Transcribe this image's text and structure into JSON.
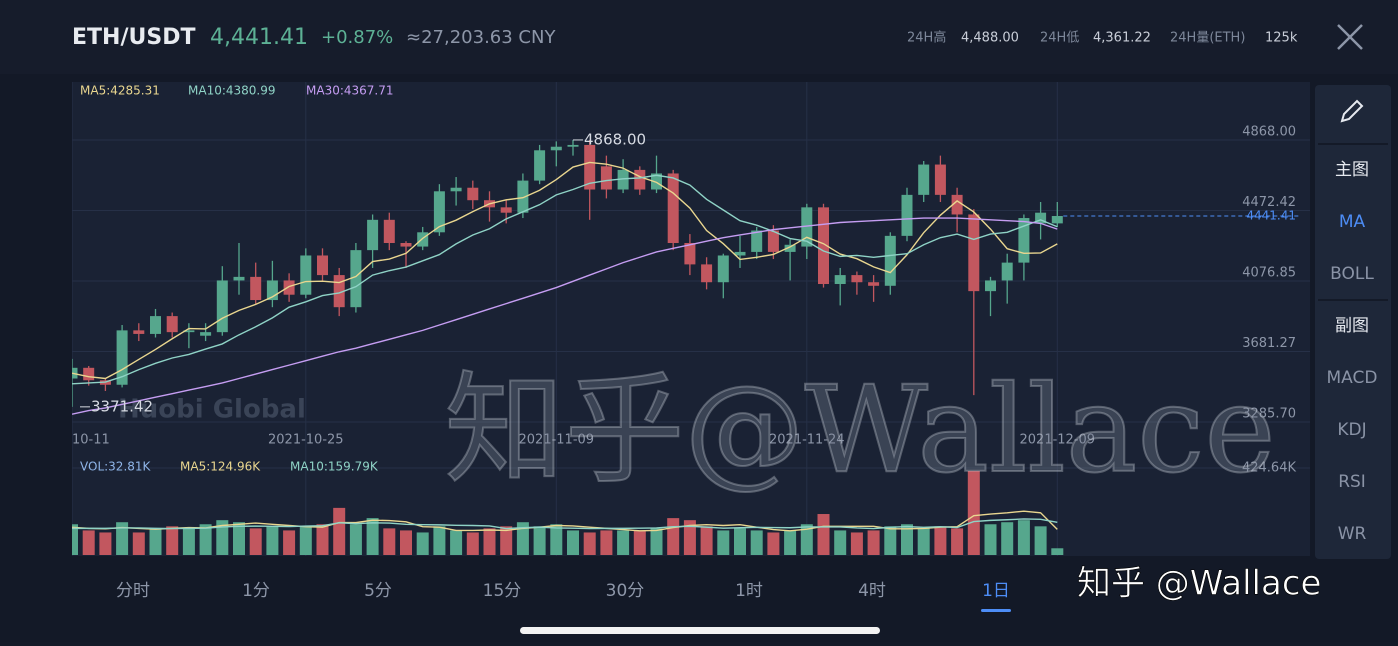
{
  "header": {
    "pair": "ETH/USDT",
    "price": "4,441.41",
    "change": "+0.87%",
    "cny": "≈27,203.63 CNY",
    "stats": [
      {
        "label": "24H高",
        "value": "4,488.00"
      },
      {
        "label": "24H低",
        "value": "4,361.22"
      },
      {
        "label": "24H量(ETH)",
        "value": "125k"
      }
    ]
  },
  "chart_data": [
    {
      "type": "candlestick",
      "up_color": "#56a78d",
      "down_color": "#c2575f",
      "categories": [
        "10-11",
        null,
        null,
        null,
        null,
        null,
        null,
        null,
        null,
        null,
        null,
        null,
        null,
        null,
        "2021-10-25",
        null,
        null,
        null,
        null,
        null,
        null,
        null,
        null,
        null,
        null,
        null,
        null,
        null,
        null,
        "2021-11-09",
        null,
        null,
        null,
        null,
        null,
        null,
        null,
        null,
        null,
        null,
        null,
        null,
        null,
        null,
        "2021-11-24",
        null,
        null,
        null,
        null,
        null,
        null,
        null,
        null,
        null,
        null,
        null,
        null,
        null,
        null,
        "2021-12-09"
      ],
      "open": [
        3530,
        3590,
        3520,
        3495,
        3800,
        3780,
        3880,
        3790,
        3770,
        3790,
        4080,
        4100,
        3970,
        4080,
        4000,
        4220,
        4110,
        3930,
        4250,
        4420,
        4290,
        4270,
        4350,
        4580,
        4600,
        4530,
        4490,
        4460,
        4640,
        4810,
        4830,
        4840,
        4720,
        4590,
        4700,
        4590,
        4680,
        4290,
        4170,
        4070,
        4220,
        4240,
        4360,
        4240,
        4270,
        4490,
        4060,
        4110,
        4070,
        4050,
        4330,
        4560,
        4730,
        4560,
        4450,
        4020,
        4080,
        4180,
        4400,
        4400
      ],
      "high": [
        3640,
        3600,
        3530,
        3830,
        3840,
        3920,
        3900,
        3840,
        3840,
        4160,
        4290,
        4180,
        4190,
        4120,
        4260,
        4260,
        4150,
        4290,
        4450,
        4460,
        4300,
        4380,
        4620,
        4660,
        4640,
        4580,
        4530,
        4680,
        4840,
        4860,
        4868,
        4868,
        4780,
        4760,
        4720,
        4780,
        4700,
        4340,
        4210,
        4230,
        4330,
        4380,
        4390,
        4310,
        4510,
        4510,
        4150,
        4130,
        4110,
        4350,
        4600,
        4750,
        4780,
        4600,
        4480,
        4100,
        4230,
        4450,
        4520,
        4520
      ],
      "low": [
        3371,
        3490,
        3460,
        3480,
        3740,
        3760,
        3760,
        3700,
        3740,
        3770,
        4000,
        3950,
        3930,
        3960,
        3980,
        4080,
        3880,
        3900,
        4150,
        4250,
        4150,
        4250,
        4330,
        4500,
        4480,
        4410,
        4400,
        4430,
        4620,
        4720,
        4780,
        4420,
        4540,
        4570,
        4560,
        4570,
        4250,
        4110,
        4030,
        3980,
        4150,
        4200,
        4200,
        4080,
        4200,
        4040,
        3940,
        4000,
        3960,
        4000,
        4300,
        4520,
        4520,
        4350,
        3437,
        3880,
        3950,
        4080,
        4310,
        4380
      ],
      "close": [
        3590,
        3520,
        3495,
        3800,
        3780,
        3880,
        3790,
        3800,
        3790,
        4080,
        4100,
        3970,
        4080,
        4000,
        4220,
        4110,
        3930,
        4250,
        4420,
        4290,
        4270,
        4350,
        4580,
        4600,
        4530,
        4490,
        4460,
        4640,
        4810,
        4830,
        4840,
        4590,
        4590,
        4700,
        4590,
        4680,
        4290,
        4170,
        4070,
        4220,
        4240,
        4360,
        4240,
        4280,
        4490,
        4060,
        4110,
        4070,
        4050,
        4330,
        4560,
        4730,
        4560,
        4450,
        4020,
        4080,
        4180,
        4430,
        4460,
        4441.41
      ],
      "series": [
        {
          "name": "MA5:4285.31",
          "color": "#e9d68f",
          "values": [
            3560,
            3540,
            3530,
            3580,
            3637,
            3693,
            3753,
            3810,
            3808,
            3868,
            3912,
            3946,
            3988,
            4046,
            4074,
            4076,
            4068,
            4102,
            4186,
            4200,
            4232,
            4316,
            4382,
            4418,
            4466,
            4510,
            4532,
            4544,
            4586,
            4646,
            4716,
            4742,
            4732,
            4710,
            4662,
            4630,
            4570,
            4486,
            4360,
            4286,
            4198,
            4210,
            4226,
            4268,
            4322,
            4286,
            4228,
            4202,
            4156,
            4124,
            4224,
            4348,
            4446,
            4526,
            4464,
            4368,
            4258,
            4232,
            4234,
            4285.31
          ]
        },
        {
          "name": "MA10:4380.99",
          "color": "#8fd3c6",
          "values": [
            3500,
            3505,
            3510,
            3540,
            3580,
            3615,
            3645,
            3665,
            3695,
            3724,
            3775,
            3820,
            3870,
            3930,
            3960,
            3995,
            4010,
            4045,
            4110,
            4135,
            4155,
            4190,
            4225,
            4285,
            4335,
            4370,
            4425,
            4465,
            4505,
            4560,
            4590,
            4625,
            4640,
            4650,
            4655,
            4670,
            4655,
            4615,
            4535,
            4475,
            4415,
            4390,
            4355,
            4315,
            4300,
            4245,
            4215,
            4220,
            4210,
            4220,
            4230,
            4280,
            4320,
            4340,
            4310,
            4340,
            4350,
            4385,
            4420,
            4380.99
          ]
        },
        {
          "name": "MA30:4367.71",
          "color": "#c59df2",
          "values": [
            3330,
            3350,
            3365,
            3385,
            3405,
            3425,
            3445,
            3465,
            3485,
            3505,
            3530,
            3555,
            3580,
            3605,
            3630,
            3655,
            3680,
            3700,
            3725,
            3750,
            3775,
            3800,
            3830,
            3860,
            3890,
            3920,
            3950,
            3980,
            4010,
            4040,
            4075,
            4110,
            4145,
            4180,
            4210,
            4240,
            4260,
            4280,
            4300,
            4320,
            4335,
            4350,
            4365,
            4375,
            4385,
            4395,
            4405,
            4410,
            4415,
            4420,
            4425,
            4430,
            4430,
            4430,
            4425,
            4420,
            4415,
            4410,
            4400,
            4367.71
          ]
        }
      ],
      "ylim": [
        3129,
        5193
      ],
      "yticks": [
        {
          "value": 4868,
          "label": "4868.00"
        },
        {
          "value": 4472.42,
          "label": "4472.42"
        },
        {
          "value": 4076.85,
          "label": "4076.85"
        },
        {
          "value": 3681.27,
          "label": "3681.27"
        },
        {
          "value": 3285.7,
          "label": "3285.70"
        }
      ],
      "grid": true,
      "high_label": "4868.00",
      "low_label": "3371.42",
      "last_label": "4441.41",
      "last_color": "#4d8df6"
    },
    {
      "type": "bar",
      "legend": "VOL:32.81K",
      "legend_color": "#8fb5e8",
      "values": [
        150,
        120,
        110,
        160,
        110,
        130,
        140,
        130,
        150,
        170,
        160,
        130,
        140,
        120,
        140,
        150,
        230,
        150,
        180,
        130,
        120,
        110,
        140,
        120,
        110,
        130,
        140,
        160,
        140,
        150,
        120,
        110,
        120,
        120,
        120,
        130,
        180,
        170,
        140,
        120,
        130,
        120,
        110,
        120,
        150,
        200,
        120,
        110,
        120,
        140,
        150,
        130,
        140,
        130,
        410,
        150,
        160,
        170,
        140,
        32.81
      ],
      "series": [
        {
          "name": "MA5:124.96K",
          "color": "#e9d68f",
          "values": [
            135,
            130,
            128,
            134,
            130,
            126,
            130,
            134,
            132,
            144,
            150,
            156,
            150,
            144,
            138,
            136,
            158,
            158,
            170,
            168,
            162,
            138,
            136,
            120,
            120,
            122,
            120,
            130,
            136,
            144,
            142,
            136,
            130,
            124,
            118,
            120,
            134,
            144,
            148,
            144,
            148,
            136,
            124,
            118,
            126,
            140,
            140,
            140,
            140,
            128,
            128,
            130,
            136,
            138,
            192,
            200,
            206,
            214,
            206,
            124.96
          ]
        },
        {
          "name": "MA10:159.79K",
          "color": "#8fd3c6",
          "values": [
            130,
            130,
            130,
            132,
            132,
            130,
            129,
            130,
            131,
            137,
            140,
            141,
            140,
            139,
            141,
            143,
            157,
            153,
            157,
            156,
            150,
            148,
            147,
            145,
            144,
            142,
            129,
            133,
            136,
            132,
            131,
            129,
            130,
            130,
            131,
            132,
            138,
            140,
            136,
            131,
            133,
            135,
            134,
            133,
            137,
            137,
            137,
            132,
            129,
            135,
            139,
            135,
            138,
            134,
            163,
            169,
            172,
            176,
            174,
            159.79
          ]
        }
      ],
      "ylim": [
        0,
        424.64
      ],
      "yticks": [
        {
          "value": 424.64,
          "label": "424.64K"
        }
      ]
    }
  ],
  "side_menu": [
    "主图",
    "MA",
    "BOLL",
    "副图",
    "MACD",
    "KDJ",
    "RSI",
    "WR"
  ],
  "tabs": [
    "分时",
    "1分",
    "5分",
    "15分",
    "30分",
    "1时",
    "4时",
    "1日"
  ],
  "watermarks": {
    "brand": "Huobi Global",
    "big": "知乎@Wallace",
    "corner": "知乎 @Wallace"
  }
}
